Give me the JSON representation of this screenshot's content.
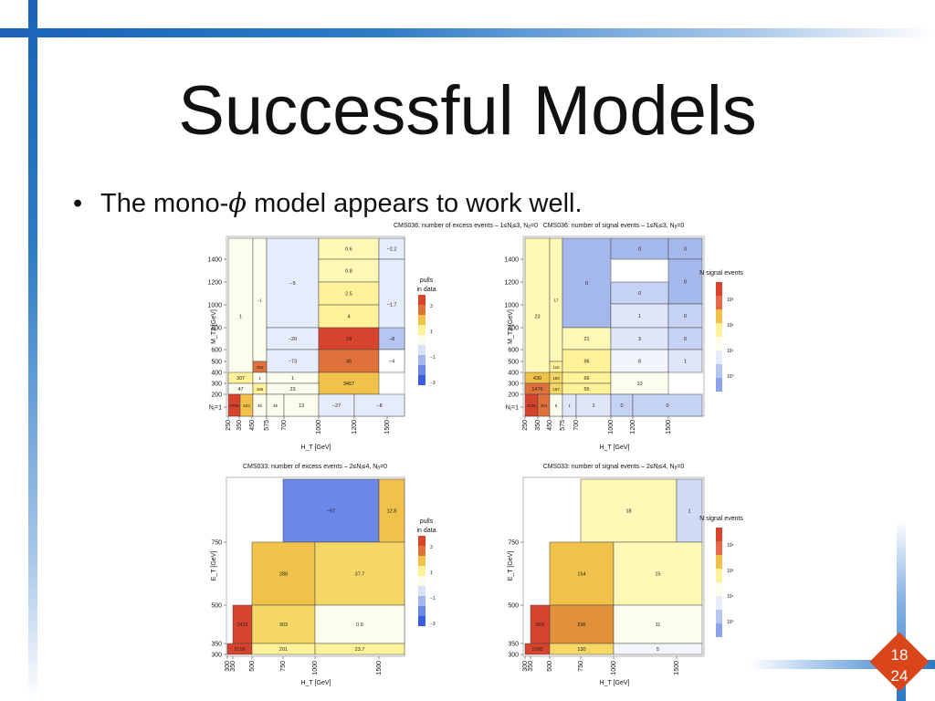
{
  "slide": {
    "title": "Successful Models",
    "bullet_pre": "The mono-",
    "bullet_symbol": "ϕ",
    "bullet_post": " model appears to work well.",
    "slide_number": "18",
    "total_pages": "24"
  },
  "chart_data": [
    {
      "type": "heatmap",
      "title": "CMS036: number of excess events – 1≤Nⱼ≤3, Nᵦ=0",
      "xlabel": "H_T [GeV]",
      "ylabel": "M_T2 [GeV]",
      "x_ticks": [
        "250",
        "350",
        "450",
        "575",
        "700",
        "1000",
        "1200",
        "1500"
      ],
      "y_ticks": [
        "Nⱼ=1",
        "200",
        "300",
        "400",
        "500",
        "600",
        "800",
        "1000",
        "1200",
        "1400"
      ],
      "legend": {
        "title": [
          "pulls",
          "in data"
        ],
        "scale": [
          "3",
          "1",
          "−1",
          "−3"
        ]
      },
      "cells": [
        {
          "x": [
            250,
            350
          ],
          "y": [
            400,
            1600
          ],
          "v": "1",
          "c": "#fdfdee"
        },
        {
          "x": [
            350,
            450
          ],
          "y": [
            600,
            1600
          ],
          "v": "−1",
          "c": "#fdfdee"
        },
        {
          "x": [
            450,
            575
          ],
          "y": [
            700,
            1600
          ],
          "v": "−5",
          "c": "#e6ecfb"
        },
        {
          "x": [
            575,
            1000
          ],
          "y": [
            1500,
            1600
          ],
          "v": "0.6",
          "c": "#fff8b6"
        },
        {
          "x": [
            575,
            700
          ],
          "y": [
            1300,
            1500
          ],
          "v": "0.8",
          "c": "#fff8b6"
        },
        {
          "x": [
            700,
            1000
          ],
          "y": [
            1500,
            1600
          ],
          "v": "−2.2",
          "c": "#e6ecfb"
        },
        {
          "x": [
            575,
            700
          ],
          "y": [
            1100,
            1300
          ],
          "v": "2.5",
          "c": "#fff299"
        },
        {
          "x": [
            575,
            700
          ],
          "y": [
            900,
            1100
          ],
          "v": "4",
          "c": "#fff299"
        },
        {
          "x": [
            700,
            1000
          ],
          "y": [
            900,
            1100
          ],
          "v": "−1.7",
          "c": "#e6ecfb"
        },
        {
          "x": [
            450,
            575
          ],
          "y": [
            700,
            900
          ],
          "v": "−20",
          "c": "#e6ecfb"
        },
        {
          "x": [
            575,
            700
          ],
          "y": [
            700,
            900
          ],
          "v": "24",
          "c": "#d8432e"
        },
        {
          "x": [
            700,
            1000
          ],
          "y": [
            700,
            900
          ],
          "v": "−8",
          "c": "#b5c6f0"
        },
        {
          "x": [
            450,
            575
          ],
          "y": [
            500,
            700
          ],
          "v": "−73",
          "c": "#e6ecfb"
        },
        {
          "x": [
            575,
            700
          ],
          "y": [
            500,
            700
          ],
          "v": "45",
          "c": "#e0713a"
        },
        {
          "x": [
            700,
            1000
          ],
          "y": [
            500,
            700
          ],
          "v": "−4",
          "c": "#ffffff"
        },
        {
          "x": [
            350,
            450
          ],
          "y": [
            400,
            600
          ],
          "v": "192",
          "c": "#e0713a"
        },
        {
          "x": [
            250,
            350
          ],
          "y": [
            300,
            400
          ],
          "v": "307",
          "c": "#fff299"
        },
        {
          "x": [
            350,
            450
          ],
          "y": [
            300,
            400
          ],
          "v": "1",
          "c": "#fdfdee"
        },
        {
          "x": [
            450,
            575
          ],
          "y": [
            300,
            400
          ],
          "v": "1",
          "c": "#fdfdee"
        },
        {
          "x": [
            250,
            350
          ],
          "y": [
            200,
            300
          ],
          "v": "3467",
          "c": "#f0c24a"
        },
        {
          "x": [
            350,
            450
          ],
          "y": [
            200,
            300
          ],
          "v": "47",
          "c": "#fdfdee"
        },
        {
          "x": [
            450,
            575
          ],
          "y": [
            200,
            300
          ],
          "v": "186",
          "c": "#fff299"
        },
        {
          "x": [
            575,
            1000
          ],
          "y": [
            200,
            400
          ],
          "v": "23",
          "c": "#fdfdee"
        },
        {
          "x": [
            250,
            350
          ],
          "y": [
            0,
            200
          ],
          "v": "3789",
          "c": "#d8432e"
        },
        {
          "x": [
            350,
            450
          ],
          "y": [
            0,
            200
          ],
          "v": "622",
          "c": "#f0c24a"
        },
        {
          "x": [
            450,
            575
          ],
          "y": [
            0,
            200
          ],
          "v": "46",
          "c": "#fdfdee"
        },
        {
          "x": [
            575,
            700
          ],
          "y": [
            0,
            200
          ],
          "v": "46",
          "c": "#fdfdee"
        },
        {
          "x": [
            700,
            1000
          ],
          "y": [
            0,
            200
          ],
          "v": "13",
          "c": "#fdfdee"
        },
        {
          "x": [
            1000,
            1200
          ],
          "y": [
            0,
            200
          ],
          "v": "−27",
          "c": "#e6ecfb"
        },
        {
          "x": [
            1200,
            1500
          ],
          "y": [
            0,
            200
          ],
          "v": "−8",
          "c": "#e6ecfb"
        }
      ]
    },
    {
      "type": "heatmap",
      "title": "CMS036: number of signal events – 1≤Nⱼ≤3, Nᵦ=0",
      "xlabel": "H_T [GeV]",
      "ylabel": "M_T2 [GeV]",
      "x_ticks": [
        "250",
        "350",
        "450",
        "575",
        "700",
        "1000",
        "1200",
        "1500"
      ],
      "y_ticks": [
        "Nⱼ=1",
        "200",
        "300",
        "400",
        "500",
        "600",
        "800",
        "1000",
        "1200",
        "1400"
      ],
      "legend": {
        "title": "N signal events",
        "scale": [
          "10³",
          "10²",
          "10¹",
          "10⁰"
        ]
      },
      "cells": [
        {
          "v": "23",
          "c": "#fff8b6"
        },
        {
          "v": "17",
          "c": "#fff8b6"
        },
        {
          "v": "0",
          "c": "#a5b8ec"
        },
        {
          "v": "0",
          "c": "#a5b8ec"
        },
        {
          "v": "0",
          "c": "#a5b8ec"
        },
        {
          "v": "0",
          "c": "#a5b8ec"
        },
        {
          "v": "0",
          "c": "#c5d2f3"
        },
        {
          "v": "1",
          "c": "#dfe6fa"
        },
        {
          "v": "0",
          "c": "#c5d2f3"
        },
        {
          "v": "21",
          "c": "#fff8b6"
        },
        {
          "v": "3",
          "c": "#dfe6fa"
        },
        {
          "v": "0",
          "c": "#c5d2f3"
        },
        {
          "v": "116",
          "c": "#fff299"
        },
        {
          "v": "96",
          "c": "#fff299"
        },
        {
          "v": "8",
          "c": "#f3f5fc"
        },
        {
          "v": "1",
          "c": "#dfe6fa"
        },
        {
          "v": "430",
          "c": "#f0c24a"
        },
        {
          "v": "160",
          "c": "#f6d867"
        },
        {
          "v": "66",
          "c": "#fff299"
        },
        {
          "v": "1476",
          "c": "#e0713a"
        },
        {
          "v": "157",
          "c": "#f6d867"
        },
        {
          "v": "55",
          "c": "#fff299"
        },
        {
          "v": "10",
          "c": "#fdfdee"
        },
        {
          "v": "3296",
          "c": "#d8432e"
        },
        {
          "v": "454",
          "c": "#e0713a"
        },
        {
          "v": "6",
          "c": "#fdfdee"
        },
        {
          "v": "1",
          "c": "#dfe6fa"
        },
        {
          "v": "1",
          "c": "#dfe6fa"
        },
        {
          "v": "0",
          "c": "#c5d2f3"
        },
        {
          "v": "0",
          "c": "#c5d2f3"
        }
      ]
    },
    {
      "type": "heatmap",
      "title": "CMS033: number of excess events – 2≤Nⱼ≤4, Nᵦ=0",
      "xlabel": "H_T [GeV]",
      "ylabel": "E_T [GeV]",
      "x_ticks": [
        "300",
        "350",
        "500",
        "750",
        "1000",
        "1500"
      ],
      "y_ticks": [
        "300",
        "350",
        "500",
        "750"
      ],
      "legend": {
        "title": [
          "pulls",
          "in data"
        ],
        "scale": [
          "3",
          "1",
          "−1",
          "−3"
        ]
      },
      "cells": [
        {
          "v": "−97",
          "c": "#6b87e8"
        },
        {
          "v": "12.8",
          "c": "#f0c24a"
        },
        {
          "v": "288",
          "c": "#f0c24a"
        },
        {
          "v": "37.7",
          "c": "#f6d867"
        },
        {
          "v": "1425",
          "c": "#d8432e"
        },
        {
          "v": "303",
          "c": "#f6d867"
        },
        {
          "v": "0.9",
          "c": "#fdfdee"
        },
        {
          "v": "2155",
          "c": "#d8432e"
        },
        {
          "v": "201",
          "c": "#fff299"
        },
        {
          "v": "23.7",
          "c": "#fff299"
        }
      ]
    },
    {
      "type": "heatmap",
      "title": "CMS033: number of signal events – 2≤Nⱼ≤4, Nᵦ=0",
      "xlabel": "H_T [GeV]",
      "ylabel": "E_T [GeV]",
      "x_ticks": [
        "300",
        "350",
        "500",
        "750",
        "1000",
        "1500"
      ],
      "y_ticks": [
        "300",
        "350",
        "500",
        "750"
      ],
      "legend": {
        "title": "N signal events",
        "scale": [
          "10³",
          "10²",
          "10¹",
          "10⁰"
        ]
      },
      "cells": [
        {
          "v": "18",
          "c": "#fff8b6"
        },
        {
          "v": "1",
          "c": "#d0dbf7"
        },
        {
          "v": "154",
          "c": "#f0c24a"
        },
        {
          "v": "15",
          "c": "#fff8b6"
        },
        {
          "v": "953",
          "c": "#d8432e"
        },
        {
          "v": "296",
          "c": "#e0913a"
        },
        {
          "v": "11",
          "c": "#fdfdee"
        },
        {
          "v": "1590",
          "c": "#d8432e"
        },
        {
          "v": "130",
          "c": "#f6d867"
        },
        {
          "v": "5",
          "c": "#f3f5fc"
        }
      ]
    }
  ]
}
